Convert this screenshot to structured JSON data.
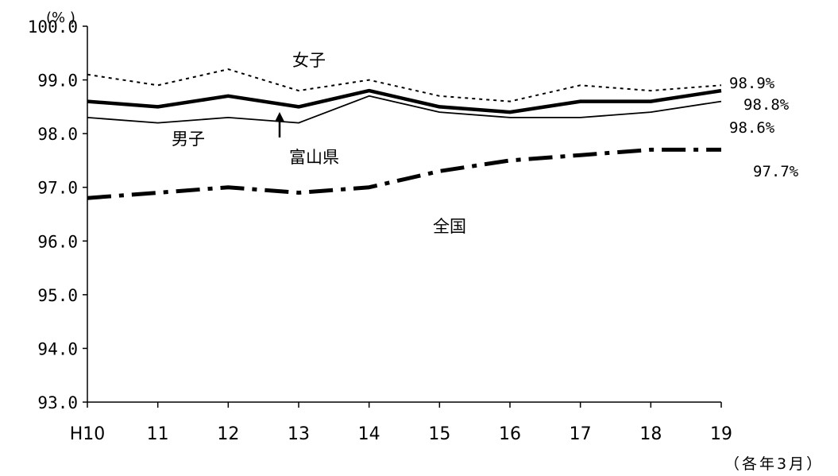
{
  "chart_data": {
    "type": "line",
    "categories": [
      "H10",
      "11",
      "12",
      "13",
      "14",
      "15",
      "16",
      "17",
      "18",
      "19"
    ],
    "ylim": [
      93.0,
      100.0
    ],
    "yticks": [
      "93.0",
      "94.0",
      "95.0",
      "96.0",
      "97.0",
      "98.0",
      "99.0",
      "100.0"
    ],
    "ylabel": "(% )",
    "xlabel": "（各年3月）",
    "grid": false,
    "series": [
      {
        "name": "女子",
        "style": "dotted",
        "color": "#000000",
        "values": [
          99.1,
          98.9,
          99.2,
          98.8,
          99.0,
          98.7,
          98.6,
          98.9,
          98.8,
          98.9
        ],
        "end_label": "98.9%"
      },
      {
        "name": "富山県",
        "style": "bold",
        "color": "#000000",
        "values": [
          98.6,
          98.5,
          98.7,
          98.5,
          98.8,
          98.5,
          98.4,
          98.6,
          98.6,
          98.8
        ],
        "end_label": "98.8%"
      },
      {
        "name": "男子",
        "style": "thin",
        "color": "#000000",
        "values": [
          98.3,
          98.2,
          98.3,
          98.2,
          98.7,
          98.4,
          98.3,
          98.3,
          98.4,
          98.6
        ],
        "end_label": "98.6%"
      },
      {
        "name": "全国",
        "style": "dash-dot",
        "color": "#000000",
        "values": [
          96.8,
          96.9,
          97.0,
          96.9,
          97.0,
          97.3,
          97.5,
          97.6,
          97.7,
          97.7
        ],
        "end_label": "97.7%"
      }
    ]
  }
}
